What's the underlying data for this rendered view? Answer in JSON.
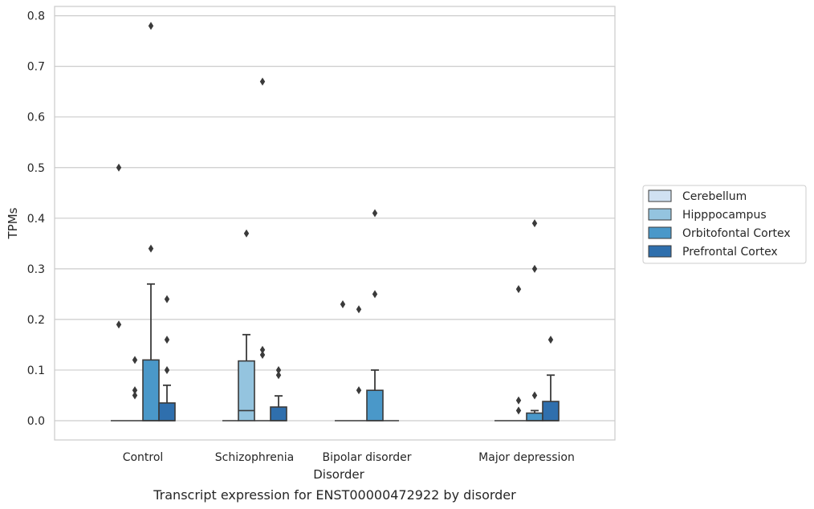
{
  "chart_data": {
    "type": "box",
    "caption": "Transcript expression for ENST00000472922 by disorder",
    "xlabel": "Disorder",
    "ylabel": "TPMs",
    "ylim": [
      -0.04,
      0.82
    ],
    "yticks": [
      0.0,
      0.1,
      0.2,
      0.3,
      0.4,
      0.5,
      0.6,
      0.7,
      0.8
    ],
    "ytick_labels": [
      "0.0",
      "0.1",
      "0.2",
      "0.3",
      "0.4",
      "0.5",
      "0.6",
      "0.7",
      "0.8"
    ],
    "grid": "horizontal",
    "legend_position": "right",
    "categories": [
      "Control",
      "Schizophrenia",
      "Bipolar disorder",
      "Major depression"
    ],
    "series": [
      {
        "name": "Cerebellum",
        "color": "#d0e1f2",
        "boxes": [
          {
            "q1": 0,
            "median": 0,
            "q3": 0,
            "whislo": 0,
            "whishi": 0,
            "fliers": [
              0.5,
              0.19
            ]
          },
          {
            "q1": 0,
            "median": 0,
            "q3": 0,
            "whislo": 0,
            "whishi": 0,
            "fliers": []
          },
          {
            "q1": 0,
            "median": 0,
            "q3": 0,
            "whislo": 0,
            "whishi": 0,
            "fliers": [
              0.23
            ]
          },
          {
            "q1": 0,
            "median": 0,
            "q3": 0,
            "whislo": 0,
            "whishi": 0,
            "fliers": []
          }
        ]
      },
      {
        "name": "Hipppocampus",
        "color": "#94c4df",
        "boxes": [
          {
            "q1": 0,
            "median": 0,
            "q3": 0,
            "whislo": 0,
            "whishi": 0,
            "fliers": [
              0.12,
              0.06,
              0.05
            ]
          },
          {
            "q1": 0,
            "median": 0.02,
            "q3": 0.118,
            "whislo": 0,
            "whishi": 0.17,
            "fliers": [
              0.37
            ]
          },
          {
            "q1": 0,
            "median": 0,
            "q3": 0,
            "whislo": 0,
            "whishi": 0,
            "fliers": [
              0.22,
              0.06
            ]
          },
          {
            "q1": 0,
            "median": 0,
            "q3": 0,
            "whislo": 0,
            "whishi": 0,
            "fliers": [
              0.26,
              0.04,
              0.02
            ]
          }
        ]
      },
      {
        "name": "Orbitofontal Cortex",
        "color": "#4a98c9",
        "boxes": [
          {
            "q1": 0,
            "median": 0,
            "q3": 0.12,
            "whislo": 0,
            "whishi": 0.27,
            "fliers": [
              0.78,
              0.34
            ]
          },
          {
            "q1": 0,
            "median": 0,
            "q3": 0,
            "whislo": 0,
            "whishi": 0,
            "fliers": [
              0.67,
              0.14,
              0.13
            ]
          },
          {
            "q1": 0,
            "median": 0,
            "q3": 0.06,
            "whislo": 0,
            "whishi": 0.1,
            "fliers": [
              0.41,
              0.25
            ]
          },
          {
            "q1": 0,
            "median": 0,
            "q3": 0.015,
            "whislo": 0,
            "whishi": 0.02,
            "fliers": [
              0.39,
              0.3,
              0.05
            ]
          }
        ]
      },
      {
        "name": "Prefrontal Cortex",
        "color": "#2f6fad",
        "boxes": [
          {
            "q1": 0,
            "median": 0,
            "q3": 0.035,
            "whislo": 0,
            "whishi": 0.07,
            "fliers": [
              0.24,
              0.16,
              0.1
            ]
          },
          {
            "q1": 0,
            "median": 0,
            "q3": 0.027,
            "whislo": 0,
            "whishi": 0.049,
            "fliers": [
              0.1,
              0.09
            ]
          },
          {
            "q1": 0,
            "median": 0,
            "q3": 0,
            "whislo": 0,
            "whishi": 0,
            "fliers": []
          },
          {
            "q1": 0,
            "median": 0,
            "q3": 0.038,
            "whislo": 0,
            "whishi": 0.09,
            "fliers": [
              0.16
            ]
          }
        ]
      }
    ]
  }
}
